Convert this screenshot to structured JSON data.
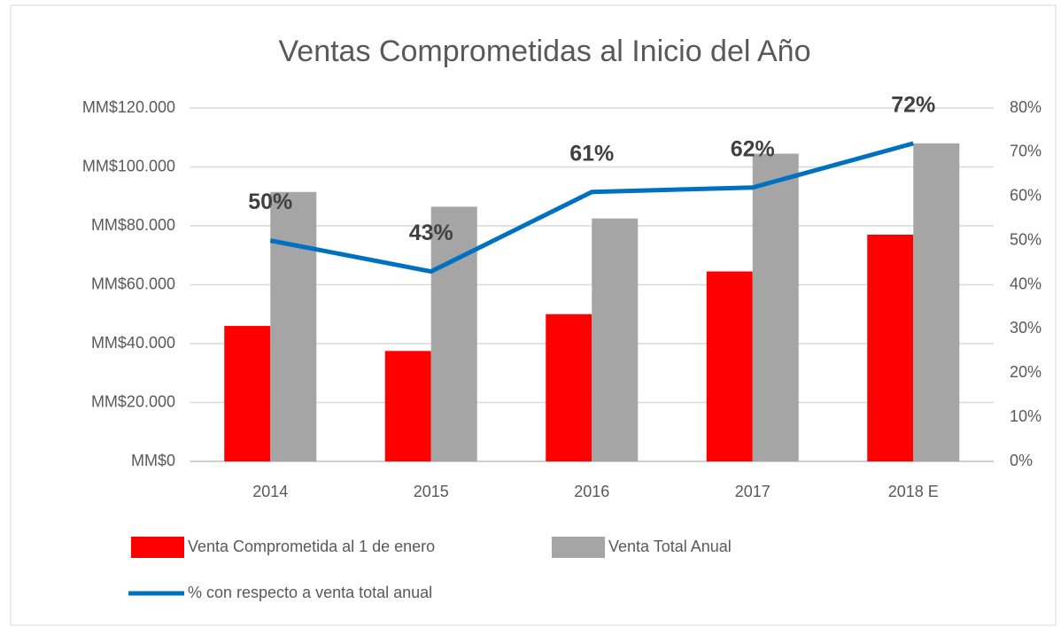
{
  "chart_data": {
    "type": "bar",
    "title": "Ventas Comprometidas al Inicio del Año",
    "categories": [
      "2014",
      "2015",
      "2016",
      "2017",
      "2018 E"
    ],
    "series": [
      {
        "name": "Venta Comprometida al 1 de enero",
        "color": "#ff0000",
        "values": [
          46000,
          37500,
          50000,
          64500,
          77000
        ]
      },
      {
        "name": "Venta Total Anual",
        "color": "#a5a5a5",
        "values": [
          91500,
          86500,
          82500,
          104500,
          108000
        ]
      },
      {
        "name": "% con respecto a venta total anual",
        "color": "#0070c0",
        "type": "line",
        "axis": "y2",
        "values": [
          50,
          43,
          61,
          62,
          72
        ],
        "value_labels": [
          "50%",
          "43%",
          "61%",
          "62%",
          "72%"
        ]
      }
    ],
    "ylim": [
      0,
      120000
    ],
    "yticks": [
      {
        "value": 0,
        "label": "MM$0"
      },
      {
        "value": 20000,
        "label": "MM$20.000"
      },
      {
        "value": 40000,
        "label": "MM$40.000"
      },
      {
        "value": 60000,
        "label": "MM$60.000"
      },
      {
        "value": 80000,
        "label": "MM$80.000"
      },
      {
        "value": 100000,
        "label": "MM$100.000"
      },
      {
        "value": 120000,
        "label": "MM$120.000"
      }
    ],
    "y2lim": [
      0,
      80
    ],
    "y2ticks": [
      {
        "value": 0,
        "label": "0%"
      },
      {
        "value": 10,
        "label": "10%"
      },
      {
        "value": 20,
        "label": "20%"
      },
      {
        "value": 30,
        "label": "30%"
      },
      {
        "value": 40,
        "label": "40%"
      },
      {
        "value": 50,
        "label": "50%"
      },
      {
        "value": 60,
        "label": "60%"
      },
      {
        "value": 70,
        "label": "70%"
      },
      {
        "value": 80,
        "label": "80%"
      }
    ],
    "grid": true,
    "legend": "bottom-left"
  }
}
